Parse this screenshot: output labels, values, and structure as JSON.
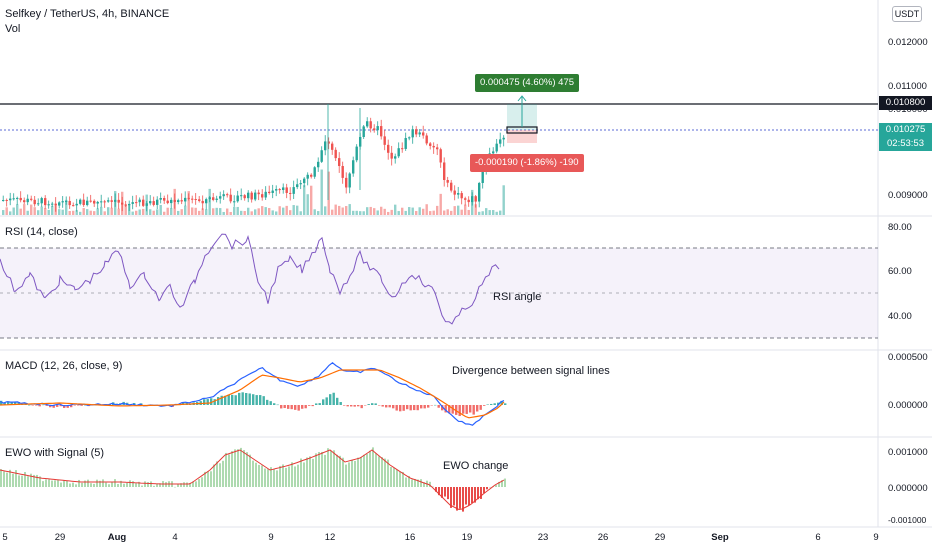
{
  "header": {
    "symbol": "Selfkey / TetherUS, 4h, BINANCE",
    "volume_label": "Vol"
  },
  "currency_button": "USDT",
  "price_axis": [
    "0.012000",
    "0.011000",
    "0.010000",
    "0.009000"
  ],
  "price_tags": {
    "target_price": "0.010800",
    "last_price": "0.010275",
    "countdown": "02:53:53"
  },
  "position": {
    "profit_label": "0.000475 (4.60%) 475",
    "loss_label": "-0.000190 (-1.86%) -190"
  },
  "rsi": {
    "title": "RSI (14, close)",
    "axis": [
      "80.00",
      "60.00",
      "40.00"
    ],
    "annotation": "RSI angle"
  },
  "macd": {
    "title": "MACD (12, 26, close, 9)",
    "axis": [
      "0.000500",
      "0.000000"
    ],
    "annotation": "Divergence between signal lines"
  },
  "ewo": {
    "title": "EWO with Signal (5)",
    "axis": [
      "0.001000",
      "0.000000",
      "-0.001000"
    ],
    "annotation": "EWO change"
  },
  "time_axis": [
    {
      "label": "5",
      "bold": false
    },
    {
      "label": "29",
      "bold": false
    },
    {
      "label": "Aug",
      "bold": true
    },
    {
      "label": "4",
      "bold": false
    },
    {
      "label": "9",
      "bold": false
    },
    {
      "label": "12",
      "bold": false
    },
    {
      "label": "16",
      "bold": false
    },
    {
      "label": "19",
      "bold": false
    },
    {
      "label": "23",
      "bold": false
    },
    {
      "label": "26",
      "bold": false
    },
    {
      "label": "29",
      "bold": false
    },
    {
      "label": "Sep",
      "bold": true
    },
    {
      "label": "6",
      "bold": false
    },
    {
      "label": "9",
      "bold": false
    }
  ],
  "colors": {
    "up": "#26a69a",
    "down": "#ef5350",
    "rsi_line": "#7e57c2",
    "macd_line": "#2962ff",
    "signal_line": "#ff6d00",
    "ewo_up": "#a5d6a7",
    "ewo_down": "#e53935",
    "profit": "#2e7d32",
    "loss": "#e85858",
    "last_price": "#26a69a"
  }
}
